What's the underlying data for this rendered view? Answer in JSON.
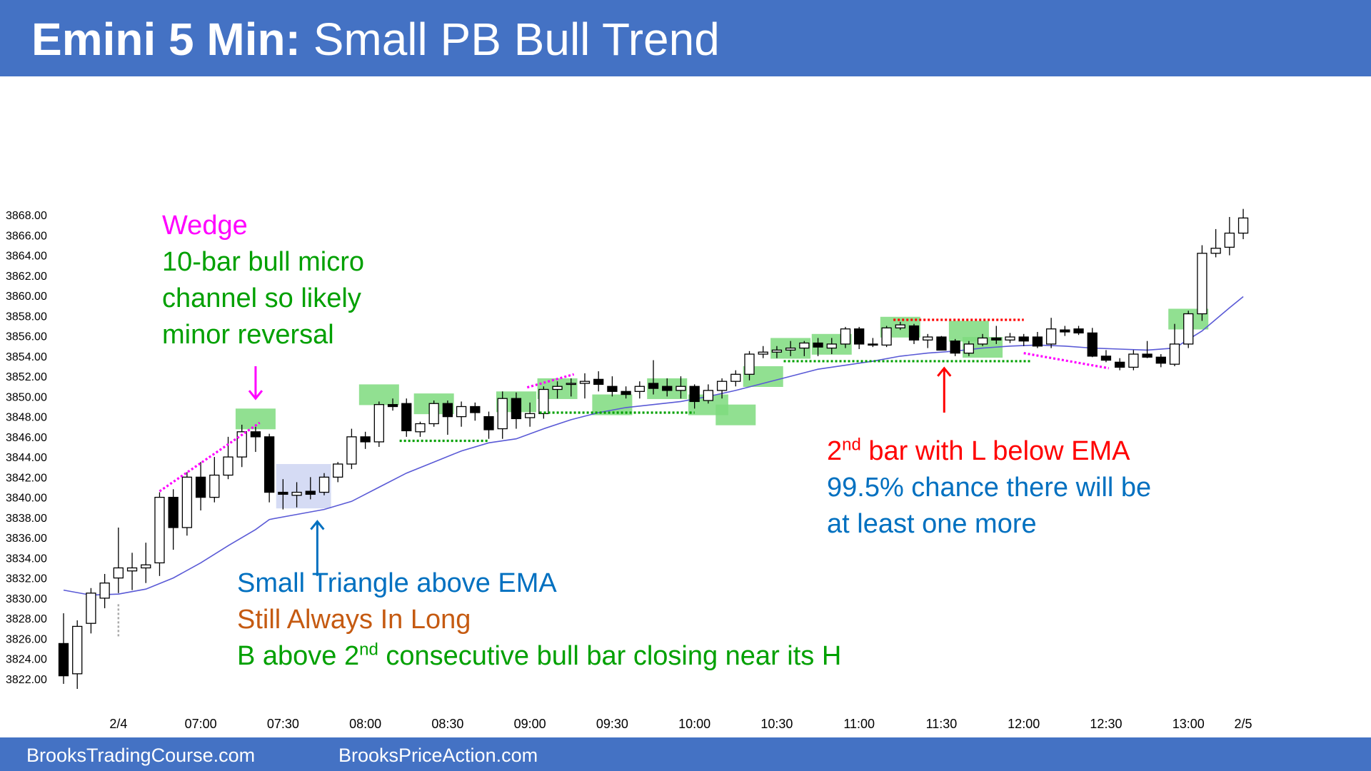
{
  "header": {
    "title_bold": "Emini 5 Min:",
    "title_rest": "Small PB Bull Trend"
  },
  "footer": {
    "left": "BrooksTradingCourse.com",
    "right": "BrooksPriceAction.com"
  },
  "colors": {
    "banner": "#4472c4",
    "green": "#00a000",
    "magenta": "#ff00ff",
    "red": "#ff0000",
    "blue": "#0070c0",
    "orange": "#c55a11",
    "ema": "#5a5ad6",
    "highlight": "#7edb7e",
    "triangle_box": "#c7cff0"
  },
  "annotations": {
    "wedge": "Wedge",
    "micro_channel": [
      "10-bar bull micro",
      "channel so likely",
      "minor reversal"
    ],
    "triangle": "Small Triangle above EMA",
    "always_in_long": "Still Always In Long",
    "b_above_pre": "B above 2",
    "b_above_sup": "nd",
    "b_above_post": " consecutive bull bar closing near its H",
    "second_bar_pre": "2",
    "second_bar_sup": "nd",
    "second_bar_post": " bar with L below EMA",
    "chance": [
      "99.5% chance there will be",
      "at least one more"
    ]
  },
  "chart_data": {
    "type": "candlestick",
    "ylim": [
      3821,
      3869
    ],
    "y_ticks": [
      "3822.00",
      "3824.00",
      "3826.00",
      "3828.00",
      "3830.00",
      "3832.00",
      "3834.00",
      "3836.00",
      "3838.00",
      "3840.00",
      "3842.00",
      "3844.00",
      "3846.00",
      "3848.00",
      "3850.00",
      "3852.00",
      "3854.00",
      "3856.00",
      "3858.00",
      "3860.00",
      "3862.00",
      "3864.00",
      "3866.00",
      "3868.00"
    ],
    "x_ticks": [
      {
        "bar": 4,
        "label": "2/4"
      },
      {
        "bar": 10,
        "label": "07:00"
      },
      {
        "bar": 16,
        "label": "07:30"
      },
      {
        "bar": 22,
        "label": "08:00"
      },
      {
        "bar": 28,
        "label": "08:30"
      },
      {
        "bar": 34,
        "label": "09:00"
      },
      {
        "bar": 40,
        "label": "09:30"
      },
      {
        "bar": 46,
        "label": "10:00"
      },
      {
        "bar": 52,
        "label": "10:30"
      },
      {
        "bar": 58,
        "label": "11:00"
      },
      {
        "bar": 64,
        "label": "11:30"
      },
      {
        "bar": 70,
        "label": "12:00"
      },
      {
        "bar": 76,
        "label": "12:30"
      },
      {
        "bar": 82,
        "label": "13:00"
      },
      {
        "bar": 86,
        "label": "2/5"
      }
    ],
    "ohlc": [
      [
        3825.5,
        3828.5,
        3821.5,
        3822.3
      ],
      [
        3822.5,
        3827.8,
        3821.0,
        3827.2
      ],
      [
        3827.5,
        3831.0,
        3826.5,
        3830.5
      ],
      [
        3830.0,
        3832.4,
        3829.0,
        3831.5
      ],
      [
        3832.0,
        3837.0,
        3830.5,
        3833.0
      ],
      [
        3832.7,
        3834.5,
        3830.8,
        3833.0
      ],
      [
        3833.0,
        3835.5,
        3831.5,
        3833.3
      ],
      [
        3833.5,
        3840.5,
        3832.2,
        3840.0
      ],
      [
        3840.0,
        3840.8,
        3834.8,
        3837.0
      ],
      [
        3837.0,
        3842.5,
        3836.2,
        3842.0
      ],
      [
        3842.0,
        3843.5,
        3838.7,
        3840.0
      ],
      [
        3840.0,
        3844.0,
        3839.5,
        3842.2
      ],
      [
        3842.2,
        3846.0,
        3841.8,
        3844.0
      ],
      [
        3844.0,
        3847.2,
        3843.0,
        3846.5
      ],
      [
        3846.5,
        3847.0,
        3844.5,
        3846.0
      ],
      [
        3846.0,
        3846.3,
        3839.5,
        3840.5
      ],
      [
        3840.5,
        3841.8,
        3838.8,
        3840.3
      ],
      [
        3840.2,
        3841.5,
        3839.0,
        3840.5
      ],
      [
        3840.6,
        3842.0,
        3839.8,
        3840.3
      ],
      [
        3840.5,
        3842.4,
        3840.2,
        3842.0
      ],
      [
        3842.0,
        3843.5,
        3841.5,
        3843.3
      ],
      [
        3843.3,
        3846.8,
        3842.8,
        3846.0
      ],
      [
        3846.0,
        3846.5,
        3844.8,
        3845.5
      ],
      [
        3845.5,
        3849.5,
        3845.0,
        3849.2
      ],
      [
        3849.2,
        3849.8,
        3848.6,
        3849.0
      ],
      [
        3849.3,
        3849.8,
        3846.0,
        3846.6
      ],
      [
        3846.5,
        3847.5,
        3846.0,
        3847.3
      ],
      [
        3847.3,
        3849.6,
        3847.0,
        3849.3
      ],
      [
        3849.3,
        3849.6,
        3846.2,
        3848.0
      ],
      [
        3848.0,
        3849.5,
        3847.0,
        3849.0
      ],
      [
        3849.0,
        3849.4,
        3847.6,
        3848.4
      ],
      [
        3848.0,
        3848.5,
        3845.8,
        3846.7
      ],
      [
        3846.8,
        3850.5,
        3845.8,
        3849.8
      ],
      [
        3849.8,
        3850.4,
        3846.8,
        3847.8
      ],
      [
        3847.9,
        3849.4,
        3847.0,
        3848.3
      ],
      [
        3848.3,
        3851.0,
        3847.8,
        3850.7
      ],
      [
        3850.7,
        3851.5,
        3849.8,
        3851.0
      ],
      [
        3851.2,
        3851.8,
        3850.0,
        3851.3
      ],
      [
        3851.3,
        3852.3,
        3849.8,
        3851.5
      ],
      [
        3851.7,
        3852.5,
        3850.5,
        3851.2
      ],
      [
        3851.0,
        3852.0,
        3850.0,
        3850.5
      ],
      [
        3850.5,
        3851.0,
        3849.8,
        3850.2
      ],
      [
        3850.5,
        3851.5,
        3849.8,
        3851.0
      ],
      [
        3851.3,
        3853.6,
        3850.2,
        3850.8
      ],
      [
        3851.0,
        3851.8,
        3850.0,
        3850.6
      ],
      [
        3850.6,
        3852.0,
        3849.8,
        3851.0
      ],
      [
        3851.0,
        3851.2,
        3848.8,
        3849.5
      ],
      [
        3849.6,
        3851.2,
        3849.3,
        3850.6
      ],
      [
        3850.6,
        3851.8,
        3849.8,
        3851.5
      ],
      [
        3851.5,
        3852.6,
        3851.0,
        3852.2
      ],
      [
        3852.2,
        3854.5,
        3851.6,
        3854.2
      ],
      [
        3854.2,
        3855.0,
        3853.8,
        3854.4
      ],
      [
        3854.4,
        3855.0,
        3853.8,
        3854.6
      ],
      [
        3854.6,
        3855.5,
        3854.0,
        3854.8
      ],
      [
        3854.8,
        3855.5,
        3854.0,
        3855.3
      ],
      [
        3855.3,
        3855.8,
        3854.0,
        3854.9
      ],
      [
        3854.8,
        3855.8,
        3854.2,
        3855.2
      ],
      [
        3855.2,
        3856.9,
        3854.8,
        3856.7
      ],
      [
        3856.7,
        3856.9,
        3854.7,
        3855.2
      ],
      [
        3855.2,
        3855.8,
        3854.9,
        3855.1
      ],
      [
        3855.1,
        3857.0,
        3854.9,
        3856.8
      ],
      [
        3856.8,
        3857.4,
        3856.6,
        3857.1
      ],
      [
        3857.0,
        3857.2,
        3855.2,
        3855.6
      ],
      [
        3855.6,
        3856.2,
        3854.8,
        3855.9
      ],
      [
        3855.9,
        3856.0,
        3854.6,
        3854.6
      ],
      [
        3855.5,
        3855.7,
        3854.0,
        3854.3
      ],
      [
        3854.3,
        3855.5,
        3854.0,
        3855.2
      ],
      [
        3855.2,
        3856.2,
        3855.0,
        3855.8
      ],
      [
        3855.8,
        3857.0,
        3855.2,
        3855.6
      ],
      [
        3855.6,
        3856.3,
        3855.3,
        3855.9
      ],
      [
        3855.9,
        3856.2,
        3855.0,
        3855.5
      ],
      [
        3855.9,
        3856.4,
        3854.8,
        3855.0
      ],
      [
        3855.2,
        3857.8,
        3854.8,
        3856.7
      ],
      [
        3856.6,
        3857.0,
        3856.0,
        3856.4
      ],
      [
        3856.7,
        3857.0,
        3856.1,
        3856.3
      ],
      [
        3856.3,
        3856.8,
        3853.9,
        3854.0
      ],
      [
        3854.0,
        3854.6,
        3853.4,
        3853.6
      ],
      [
        3853.4,
        3853.8,
        3852.6,
        3852.9
      ],
      [
        3852.9,
        3854.6,
        3852.6,
        3854.2
      ],
      [
        3854.2,
        3855.5,
        3853.8,
        3853.9
      ],
      [
        3853.9,
        3854.2,
        3852.9,
        3853.3
      ],
      [
        3853.2,
        3857.2,
        3853.0,
        3855.2
      ],
      [
        3855.2,
        3858.5,
        3854.8,
        3858.2
      ],
      [
        3858.2,
        3865.0,
        3857.5,
        3864.2
      ],
      [
        3864.2,
        3866.6,
        3863.8,
        3864.7
      ],
      [
        3864.8,
        3867.8,
        3864.0,
        3866.2
      ],
      [
        3866.2,
        3868.6,
        3865.6,
        3867.7
      ]
    ],
    "ema": [
      [
        0,
        3830.8
      ],
      [
        2,
        3830.3
      ],
      [
        4,
        3830.4
      ],
      [
        6,
        3830.9
      ],
      [
        8,
        3832.0
      ],
      [
        10,
        3833.5
      ],
      [
        12,
        3835.2
      ],
      [
        14,
        3836.8
      ],
      [
        15,
        3837.8
      ],
      [
        17,
        3838.3
      ],
      [
        19,
        3838.8
      ],
      [
        21,
        3839.6
      ],
      [
        23,
        3841.0
      ],
      [
        25,
        3842.4
      ],
      [
        27,
        3843.5
      ],
      [
        29,
        3844.6
      ],
      [
        31,
        3845.4
      ],
      [
        33,
        3845.8
      ],
      [
        35,
        3846.8
      ],
      [
        37,
        3847.7
      ],
      [
        39,
        3848.4
      ],
      [
        41,
        3848.9
      ],
      [
        43,
        3849.2
      ],
      [
        45,
        3849.5
      ],
      [
        47,
        3850.0
      ],
      [
        49,
        3850.6
      ],
      [
        51,
        3851.3
      ],
      [
        53,
        3852.0
      ],
      [
        55,
        3852.7
      ],
      [
        57,
        3853.1
      ],
      [
        59,
        3853.5
      ],
      [
        61,
        3854.0
      ],
      [
        63,
        3854.3
      ],
      [
        65,
        3854.5
      ],
      [
        67,
        3854.8
      ],
      [
        69,
        3855.0
      ],
      [
        71,
        3855.1
      ],
      [
        73,
        3855.0
      ],
      [
        75,
        3854.8
      ],
      [
        77,
        3854.7
      ],
      [
        79,
        3854.6
      ],
      [
        81,
        3854.8
      ],
      [
        83,
        3856.5
      ],
      [
        85,
        3858.8
      ],
      [
        86,
        3859.9
      ]
    ],
    "highlight_boxes": [
      [
        14,
        3848.8
      ],
      [
        23,
        3851.2
      ],
      [
        27,
        3850.3
      ],
      [
        33,
        3850.5
      ],
      [
        36,
        3851.8
      ],
      [
        40,
        3850.2
      ],
      [
        44,
        3851.8
      ],
      [
        47,
        3850.2
      ],
      [
        49,
        3849.2
      ],
      [
        51,
        3853.0
      ],
      [
        53,
        3855.8
      ],
      [
        56,
        3856.2
      ],
      [
        61,
        3857.9
      ],
      [
        66,
        3857.5
      ],
      [
        67,
        3855.9
      ],
      [
        82,
        3858.7
      ]
    ],
    "triangle_box": {
      "bars": [
        15.5,
        19.5
      ],
      "prices": [
        3838.9,
        3843.3
      ]
    },
    "green_lines": [
      [
        24.5,
        31,
        3845.6
      ],
      [
        34.7,
        46,
        3848.4
      ],
      [
        52.5,
        70.5,
        3853.5
      ]
    ],
    "red_line": [
      60.5,
      70,
      3857.6
    ],
    "magenta_lines": [
      [
        7,
        3840.6,
        14.3,
        3847.4
      ],
      [
        33.8,
        3850.9,
        37.2,
        3852.2
      ],
      [
        70,
        3854.3,
        76.2,
        3852.8
      ]
    ],
    "gray_line": [
      4,
      3826.0,
      3829.4
    ],
    "arrows": [
      {
        "bar": 14,
        "y1": 3853.0,
        "y2": 3849.8,
        "color": "magenta"
      },
      {
        "bar": 18.5,
        "y1": 3832.2,
        "y2": 3837.6,
        "color": "blue"
      },
      {
        "bar": 64.2,
        "y1": 3848.4,
        "y2": 3852.8,
        "color": "red"
      }
    ]
  }
}
